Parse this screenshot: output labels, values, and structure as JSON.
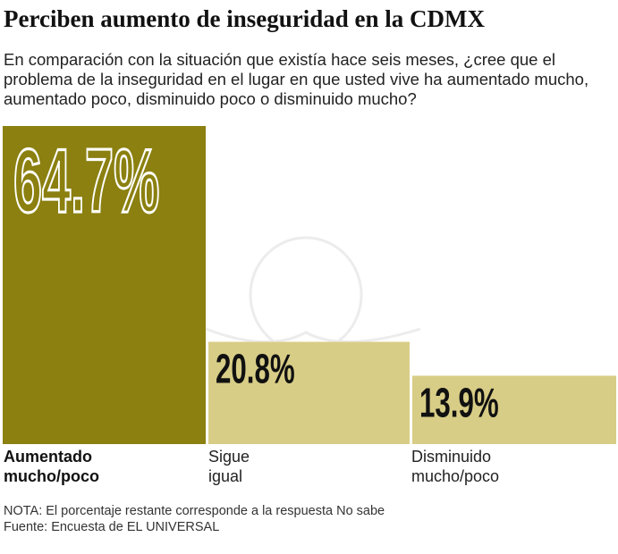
{
  "title": "Perciben aumento de inseguridad en la CDMX",
  "subtitle": "En comparación con la situación que existía hace seis meses, ¿cree que el problema de la inseguridad en el lugar en que usted vive ha aumentado mucho, aumentado poco, disminuido poco o disminuido mucho?",
  "chart_data": {
    "type": "bar",
    "categories": [
      "Aumentado mucho/poco",
      "Sigue igual",
      "Disminuido mucho/poco"
    ],
    "values": [
      64.7,
      20.8,
      13.9
    ],
    "labels": [
      "64.7%",
      "20.8%",
      "13.9%"
    ],
    "colors": [
      "#8b8010",
      "#d8cd86",
      "#d8cd86"
    ],
    "grid": false,
    "ylim": [
      0,
      64.7
    ]
  },
  "notes": {
    "nota": "NOTA: El porcentaje restante corresponde a la respuesta No sabe",
    "fuente": "Fuente: Encuesta de EL UNIVERSAL"
  }
}
